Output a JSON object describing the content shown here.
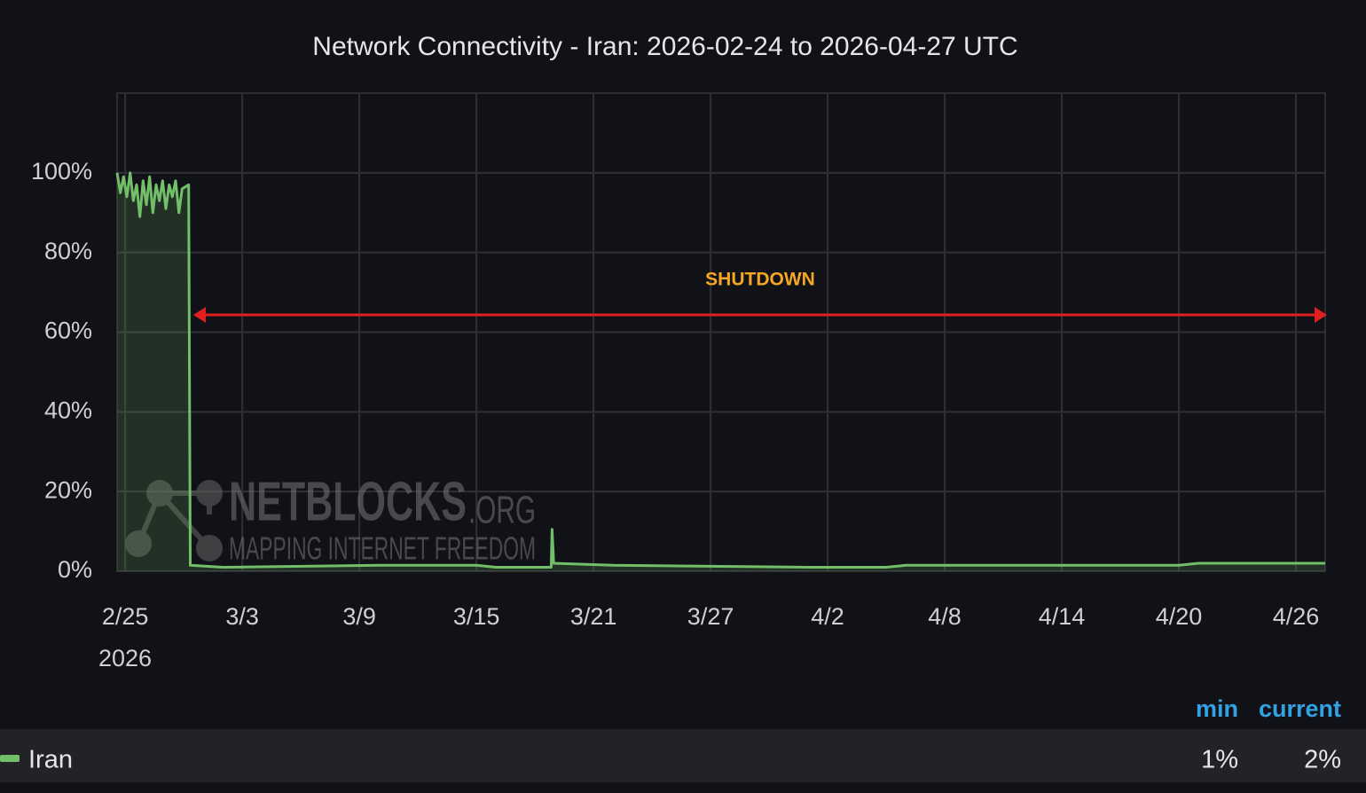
{
  "chart_data": {
    "type": "line",
    "title": "Network Connectivity - Iran: 2026-02-24 to 2026-04-27 UTC",
    "x_year_label": "2026",
    "annotation": "SHUTDOWN",
    "watermark": [
      "NETBLOCKS",
      ".ORG",
      "MAPPING INTERNET FREEDOM"
    ],
    "xlim": [
      "2026-02-24T14:00",
      "2026-04-27T12:00"
    ],
    "xticks": [
      {
        "value": "2026-02-25T00:00",
        "label": "2/25"
      },
      {
        "value": "2026-03-03T00:00",
        "label": "3/3"
      },
      {
        "value": "2026-03-09T00:00",
        "label": "3/9"
      },
      {
        "value": "2026-03-15T00:00",
        "label": "3/15"
      },
      {
        "value": "2026-03-21T00:00",
        "label": "3/21"
      },
      {
        "value": "2026-03-27T00:00",
        "label": "3/27"
      },
      {
        "value": "2026-04-02T00:00",
        "label": "4/2"
      },
      {
        "value": "2026-04-08T00:00",
        "label": "4/8"
      },
      {
        "value": "2026-04-14T00:00",
        "label": "4/14"
      },
      {
        "value": "2026-04-20T00:00",
        "label": "4/20"
      },
      {
        "value": "2026-04-26T00:00",
        "label": "4/26"
      }
    ],
    "ylim": [
      0,
      120
    ],
    "yticks": [
      {
        "value": 0,
        "label": "0%"
      },
      {
        "value": 20,
        "label": "20%"
      },
      {
        "value": 40,
        "label": "40%"
      },
      {
        "value": 60,
        "label": "60%"
      },
      {
        "value": 80,
        "label": "80%"
      },
      {
        "value": 100,
        "label": "100%"
      }
    ],
    "grid": true,
    "x": [
      "2026-02-24T14:00",
      "2026-02-24T18:00",
      "2026-02-24T22:00",
      "2026-02-25T02:00",
      "2026-02-25T06:00",
      "2026-02-25T10:00",
      "2026-02-25T14:00",
      "2026-02-25T18:00",
      "2026-02-25T22:00",
      "2026-02-26T02:00",
      "2026-02-26T06:00",
      "2026-02-26T10:00",
      "2026-02-26T14:00",
      "2026-02-26T18:00",
      "2026-02-26T22:00",
      "2026-02-27T02:00",
      "2026-02-27T06:00",
      "2026-02-27T10:00",
      "2026-02-27T14:00",
      "2026-02-27T18:00",
      "2026-02-27T22:00",
      "2026-02-28T06:00",
      "2026-02-28T08:00",
      "2026-03-02T00:00",
      "2026-03-10T00:00",
      "2026-03-15T00:00",
      "2026-03-16T00:00",
      "2026-03-18T20:00",
      "2026-03-18T21:00",
      "2026-03-18T23:00",
      "2026-03-22T00:00",
      "2026-04-01T00:00",
      "2026-04-05T00:00",
      "2026-04-06T00:00",
      "2026-04-20T00:00",
      "2026-04-21T00:00",
      "2026-04-27T12:00"
    ],
    "series": [
      {
        "name": "Iran",
        "color": "#73bf69",
        "values": [
          100,
          95,
          99,
          94,
          100,
          93,
          97,
          89,
          98,
          92,
          99,
          90,
          97,
          93,
          98,
          91,
          97,
          94,
          98,
          90,
          96,
          97,
          1.5,
          1,
          1.5,
          1.5,
          1,
          1,
          10.5,
          2,
          1.5,
          1,
          1,
          1.5,
          1.5,
          2,
          2
        ]
      }
    ],
    "legend_stats": {
      "headers": [
        "min",
        "current"
      ],
      "values": [
        1,
        2
      ],
      "value_labels": [
        "1%",
        "2%"
      ]
    }
  }
}
